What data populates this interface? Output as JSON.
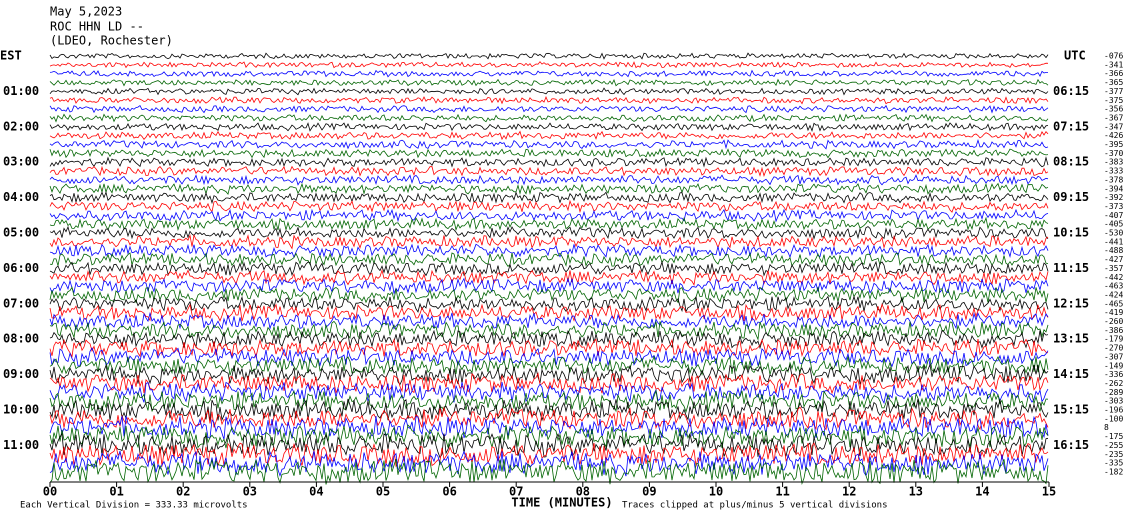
{
  "header": {
    "date": "May 5,2023",
    "station": "ROC HHN LD --",
    "network": "(LDEO, Rochester)"
  },
  "left_axis": {
    "title": "EST",
    "labels": [
      "01:00",
      "02:00",
      "03:00",
      "04:00",
      "05:00",
      "06:00",
      "07:00",
      "08:00",
      "09:00",
      "10:00",
      "11:00"
    ]
  },
  "right_axis": {
    "title": "UTC",
    "labels": [
      "06:15",
      "07:15",
      "08:15",
      "09:15",
      "10:15",
      "11:15",
      "12:15",
      "13:15",
      "14:15",
      "15:15",
      "16:15"
    ]
  },
  "trace_offsets": [
    "-076",
    "-341",
    "-366",
    "-365",
    "-377",
    "-375",
    "-356",
    "-367",
    "-347",
    "-426",
    "-395",
    "-370",
    "-383",
    "-333",
    "-378",
    "-394",
    "-392",
    "-373",
    "-407",
    "-405",
    "-530",
    "-441",
    "-488",
    "-427",
    "-357",
    "-442",
    "-463",
    "-424",
    "-465",
    "-419",
    "-260",
    "-386",
    "-179",
    "-270",
    "-307",
    "-149",
    "-336",
    "-262",
    "-289",
    "-303",
    "-196",
    "-100",
    "8",
    "-175",
    "-255",
    "-235",
    "-335",
    "-182"
  ],
  "x_axis": {
    "title": "TIME (MINUTES)",
    "xlim": [
      0,
      15
    ],
    "ticks": [
      {
        "value": 0,
        "label": "00"
      },
      {
        "value": 1,
        "label": "01"
      },
      {
        "value": 2,
        "label": "02"
      },
      {
        "value": 3,
        "label": "03"
      },
      {
        "value": 4,
        "label": "04"
      },
      {
        "value": 5,
        "label": "05"
      },
      {
        "value": 6,
        "label": "06"
      },
      {
        "value": 7,
        "label": "07"
      },
      {
        "value": 8,
        "label": "08"
      },
      {
        "value": 9,
        "label": "09"
      },
      10,
      11,
      12,
      13,
      14,
      15
    ]
  },
  "footer": {
    "scale": "Each Vertical Division =  333.33 microvolts",
    "clip": "Traces clipped at plus/minus 5 vertical divisions"
  },
  "trace_colors": [
    "#000000",
    "#ff0000",
    "#0000ff",
    "#006400"
  ]
}
